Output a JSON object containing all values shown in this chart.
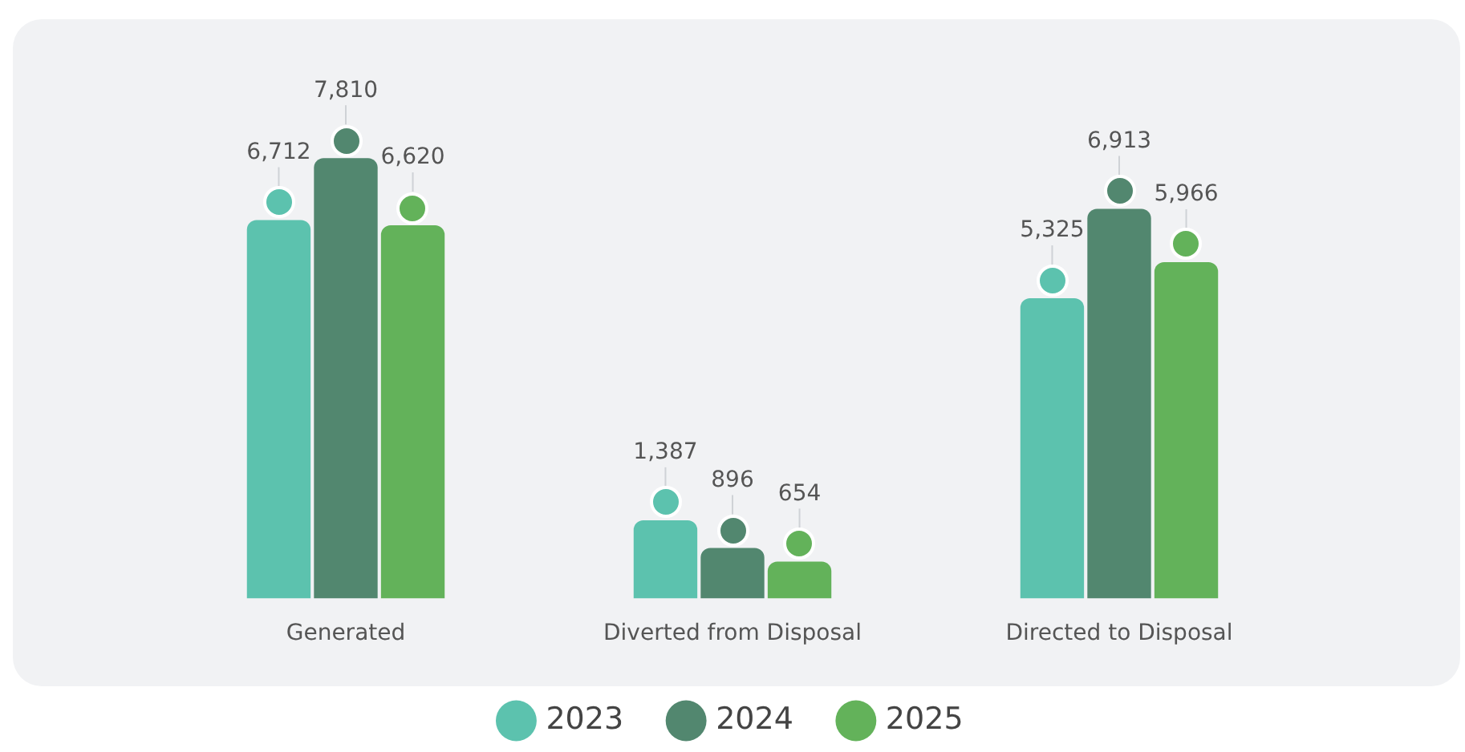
{
  "chart_data": {
    "type": "bar",
    "categories": [
      "Generated",
      "Diverted from Disposal",
      "Directed to Disposal"
    ],
    "series": [
      {
        "name": "2023",
        "color": "#5cc2ae",
        "values": [
          6712,
          1387,
          5325
        ],
        "value_labels": [
          "6,712",
          "1,387",
          "5,325"
        ]
      },
      {
        "name": "2024",
        "color": "#52876f",
        "values": [
          7810,
          896,
          6913
        ],
        "value_labels": [
          "7,810",
          "896",
          "6,913"
        ]
      },
      {
        "name": "2025",
        "color": "#63b25a",
        "values": [
          6620,
          654,
          5966
        ],
        "value_labels": [
          "6,620",
          "654",
          "5,966"
        ]
      }
    ],
    "data_labels": true,
    "legend": "bottom",
    "marker": "circle"
  }
}
